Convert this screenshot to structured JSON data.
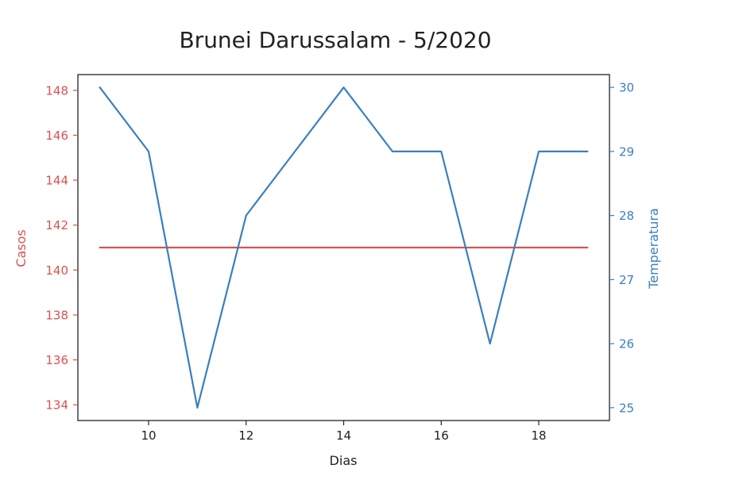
{
  "chart_data": {
    "type": "line",
    "title": "Brunei Darussalam - 5/2020",
    "xlabel": "Dias",
    "ylabel_left": "Casos",
    "ylabel_right": "Temperatura",
    "xlim": [
      8.55,
      19.45
    ],
    "ylim_left": [
      133.3,
      148.7
    ],
    "ylim_right": [
      24.8,
      30.2
    ],
    "x_ticks": [
      10,
      12,
      14,
      16,
      18
    ],
    "y_ticks_left": [
      134,
      136,
      138,
      140,
      142,
      144,
      146,
      148
    ],
    "y_ticks_right": [
      25,
      26,
      27,
      28,
      29,
      30
    ],
    "grid": false,
    "series": [
      {
        "name": "Casos",
        "axis": "left",
        "color": "#d9534f",
        "x": [
          9,
          10,
          11,
          12,
          13,
          14,
          15,
          16,
          17,
          18,
          19
        ],
        "values": [
          141,
          141,
          141,
          141,
          141,
          141,
          141,
          141,
          141,
          141,
          141
        ]
      },
      {
        "name": "Temperatura",
        "axis": "right",
        "color": "#3a7fbf",
        "x": [
          9,
          10,
          11,
          12,
          13,
          14,
          15,
          16,
          17,
          18,
          19
        ],
        "values": [
          30,
          29,
          25,
          28,
          29,
          30,
          29,
          29,
          26,
          29,
          29
        ]
      }
    ]
  }
}
